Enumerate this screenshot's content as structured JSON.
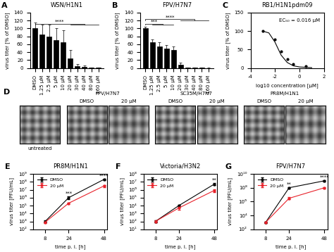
{
  "chart_data": [
    {
      "panel": "A",
      "type": "bar",
      "title": "WSN/H1N1",
      "y_label": "virus titer [% of DMSO]",
      "categories": [
        "DMSO",
        "1.25 µM",
        "2.5 µM",
        "5 µM",
        "10 µM",
        "20 µM",
        "30 µM",
        "40 µM",
        "80 µM",
        "160 µM"
      ],
      "values": [
        100,
        85,
        80,
        70,
        65,
        25,
        5,
        3,
        1,
        0.5
      ],
      "errors": [
        15,
        25,
        30,
        30,
        30,
        20,
        5,
        3,
        1,
        1
      ],
      "color": "#000000",
      "ylim": [
        0,
        140
      ],
      "yticks": [
        0,
        20,
        40,
        60,
        80,
        100,
        120,
        140
      ],
      "comparisons": [
        {
          "text": "****",
          "from": "DMSO",
          "to": [
            "20 µM",
            "160 µM"
          ]
        }
      ]
    },
    {
      "panel": "B",
      "type": "bar",
      "title": "FPV/H7N7",
      "y_label": "virus titer [% of DMSO]",
      "categories": [
        "DMSO",
        "1.25 µM",
        "2.5 µM",
        "5 µM",
        "10 µM",
        "20 µM",
        "30 µM",
        "40 µM",
        "80 µM",
        "160 µM"
      ],
      "values": [
        100,
        65,
        55,
        50,
        45,
        8,
        1,
        0.5,
        0.3,
        0.2
      ],
      "errors": [
        5,
        8,
        10,
        8,
        10,
        5,
        1,
        0.5,
        0.3,
        0.2
      ],
      "color": "#000000",
      "ylim": [
        0,
        140
      ],
      "yticks": [
        0,
        20,
        40,
        60,
        80,
        100,
        120,
        140
      ],
      "comparisons": [
        {
          "text": "***",
          "from": "DMSO",
          "to": [
            "1.25 µM",
            "10 µM"
          ]
        },
        {
          "text": "****",
          "from": "DMSO",
          "to": [
            "20 µM",
            "160 µM"
          ]
        }
      ]
    },
    {
      "panel": "C",
      "type": "scatter",
      "title": "RB1/H1N1pdm09",
      "annotation": "EC₅₀ = 0.016 µM",
      "x_label": "log10 concentration [µM]",
      "y_label": "virus titer [% of DMSO]",
      "x": [
        -3,
        -2,
        -1.5,
        -1,
        -0.5,
        0.5
      ],
      "values": [
        100,
        78,
        45,
        25,
        10,
        5
      ],
      "fit": {
        "x": [
          -3,
          -2.5,
          -2,
          -1.5,
          -1,
          -0.5,
          0,
          0.5,
          1
        ],
        "values": [
          100,
          95,
          70,
          35,
          15,
          6,
          3,
          2,
          1
        ]
      },
      "color": "#000000",
      "xlim": [
        -4,
        2
      ],
      "xticks": [
        -4,
        -2,
        0,
        2
      ],
      "ylim": [
        0,
        150
      ],
      "yticks": [
        0,
        50,
        100,
        150
      ]
    },
    {
      "panel": "E",
      "type": "line",
      "title": "PR8M/H1N1",
      "x_label": "time p. i. [h]",
      "y_label": "virus titer [PFU/mL]",
      "x": [
        8,
        24,
        48
      ],
      "series": [
        {
          "name": "DMSO",
          "color": "#000000",
          "values": [
            1000,
            1000000,
            200000000
          ],
          "errors": [
            300,
            300000,
            50000000
          ]
        },
        {
          "name": "20 µM",
          "color": "#e8212a",
          "values": [
            800,
            200000,
            30000000
          ],
          "errors": [
            200,
            50000,
            10000000
          ]
        }
      ],
      "significance": [
        null,
        "***",
        "****"
      ],
      "log": "y",
      "legend": "upper left",
      "marker": "o",
      "xlim": [
        0,
        50
      ],
      "xticks": [
        8,
        24,
        48
      ],
      "ylim": [
        100,
        1000000000
      ],
      "yticks": [
        {
          "value": 100,
          "label": "10²"
        },
        {
          "value": 1000,
          "label": "10³"
        },
        {
          "value": 10000,
          "label": "10⁴"
        },
        {
          "value": 100000,
          "label": "10⁵"
        },
        {
          "value": 1000000,
          "label": "10⁶"
        },
        {
          "value": 10000000,
          "label": "10⁷"
        },
        {
          "value": 100000000,
          "label": "10⁸"
        },
        {
          "value": 1000000000,
          "label": "10⁹"
        }
      ]
    },
    {
      "panel": "F",
      "type": "line",
      "title": "Victoria/H3N2",
      "x_label": "time p. i. [h]",
      "y_label": "virus titer [PFU/mL]",
      "x": [
        8,
        24,
        48
      ],
      "series": [
        {
          "name": "DMSO",
          "color": "#000000",
          "values": [
            100,
            10000,
            5000000
          ],
          "errors": [
            30,
            3000,
            1500000
          ]
        },
        {
          "name": "20 µM",
          "color": "#e8212a",
          "values": [
            100,
            5000,
            800000
          ],
          "errors": [
            30,
            2000,
            300000
          ]
        }
      ],
      "significance": [
        null,
        null,
        "**"
      ],
      "log": "y",
      "legend": "upper left",
      "marker": "o",
      "xlim": [
        0,
        50
      ],
      "xticks": [
        8,
        24,
        48
      ],
      "ylim": [
        10,
        100000000
      ],
      "yticks": [
        {
          "value": 10,
          "label": "10¹"
        },
        {
          "value": 100,
          "label": "10²"
        },
        {
          "value": 1000,
          "label": "10³"
        },
        {
          "value": 10000,
          "label": "10⁴"
        },
        {
          "value": 100000,
          "label": "10⁵"
        },
        {
          "value": 1000000,
          "label": "10⁶"
        },
        {
          "value": 10000000,
          "label": "10⁷"
        },
        {
          "value": 100000000,
          "label": "10⁸"
        }
      ]
    },
    {
      "panel": "G",
      "type": "line",
      "title": "FPV/H7N7",
      "x_label": "time p. i. [h]",
      "y_label": "virus titer [PFU/mL]",
      "x": [
        8,
        24,
        48
      ],
      "series": [
        {
          "name": "DMSO",
          "color": "#000000",
          "values": [
            1000,
            100000000,
            1000000000
          ],
          "errors": [
            300,
            30000000,
            300000000
          ]
        },
        {
          "name": "20 µM",
          "color": "#e8212a",
          "values": [
            1000,
            3000000,
            100000000
          ],
          "errors": [
            300,
            1000000,
            30000000
          ]
        }
      ],
      "significance": [
        null,
        "**",
        "****"
      ],
      "log": "y",
      "legend": "upper left",
      "marker": "o",
      "xlim": [
        0,
        50
      ],
      "xticks": [
        8,
        24,
        48
      ],
      "ylim": [
        100,
        10000000000
      ],
      "yticks": [
        {
          "value": 100,
          "label": "10²"
        },
        {
          "value": 10000,
          "label": "10⁴"
        },
        {
          "value": 1000000,
          "label": "10⁶"
        },
        {
          "value": 100000000,
          "label": "10⁸"
        },
        {
          "value": 10000000000,
          "label": "10¹⁰"
        }
      ]
    }
  ],
  "image_panel": {
    "panel": "D",
    "untreated": "untreated",
    "groups": [
      {
        "title": "FPV/H7N7",
        "labels": [
          "DMSO",
          "20 µM"
        ]
      },
      {
        "title": "SC35M/H7N7",
        "labels": [
          "DMSO",
          "20 µM"
        ]
      },
      {
        "title": "PR8M/H1N1",
        "labels": [
          "DMSO",
          "20 µM"
        ]
      }
    ]
  }
}
